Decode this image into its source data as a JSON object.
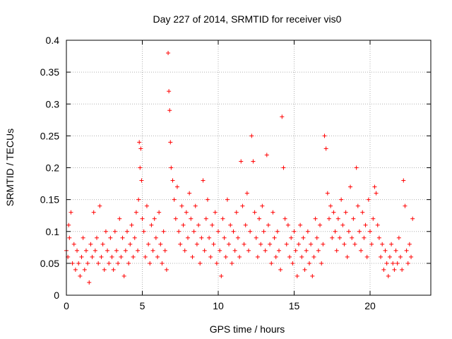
{
  "chart_data": {
    "type": "scatter",
    "title": "Day 227 of 2014, SRMTID for receiver vis0",
    "xlabel": "GPS time / hours",
    "ylabel": "SRMTID / TECUs",
    "xlim": [
      0,
      24
    ],
    "ylim": [
      0,
      0.4
    ],
    "x_ticks": [
      0,
      5,
      10,
      15,
      20
    ],
    "y_ticks": [
      0,
      0.05,
      0.1,
      0.15,
      0.2,
      0.25,
      0.3,
      0.35,
      0.4
    ],
    "x_tick_labels": [
      "0",
      "5",
      "10",
      "15",
      "20"
    ],
    "y_tick_labels": [
      "0",
      "0.05",
      "0.1",
      "0.15",
      "0.2",
      "0.25",
      "0.3",
      "0.35",
      "0.4"
    ],
    "grid": true,
    "marker": "+",
    "color": "#ff0000",
    "series": [
      {
        "name": "vis0",
        "x": [
          0.0,
          0.1,
          0.15,
          0.2,
          0.3,
          0.4,
          0.5,
          0.6,
          0.7,
          0.8,
          0.9,
          1.0,
          1.1,
          1.2,
          1.3,
          1.4,
          1.5,
          1.6,
          1.7,
          1.8,
          1.9,
          2.0,
          2.1,
          2.2,
          2.3,
          2.4,
          2.5,
          2.6,
          2.7,
          2.8,
          2.9,
          3.0,
          3.1,
          3.2,
          3.3,
          3.4,
          3.5,
          3.6,
          3.7,
          3.8,
          3.9,
          4.0,
          4.1,
          4.2,
          4.3,
          4.4,
          4.5,
          4.6,
          4.7,
          4.75,
          4.8,
          4.85,
          4.9,
          4.95,
          5.0,
          5.1,
          5.2,
          5.3,
          5.4,
          5.5,
          5.6,
          5.7,
          5.8,
          5.9,
          6.0,
          6.1,
          6.2,
          6.3,
          6.4,
          6.5,
          6.6,
          6.7,
          6.75,
          6.8,
          6.85,
          6.9,
          7.0,
          7.1,
          7.2,
          7.3,
          7.4,
          7.5,
          7.6,
          7.7,
          7.8,
          7.9,
          8.0,
          8.1,
          8.2,
          8.3,
          8.4,
          8.5,
          8.6,
          8.7,
          8.8,
          8.9,
          9.0,
          9.1,
          9.2,
          9.3,
          9.4,
          9.5,
          9.6,
          9.7,
          9.8,
          9.9,
          10.0,
          10.1,
          10.2,
          10.3,
          10.4,
          10.5,
          10.6,
          10.7,
          10.8,
          10.9,
          11.0,
          11.1,
          11.2,
          11.3,
          11.4,
          11.5,
          11.6,
          11.7,
          11.8,
          11.9,
          12.0,
          12.1,
          12.2,
          12.3,
          12.4,
          12.5,
          12.6,
          12.7,
          12.8,
          12.9,
          13.0,
          13.1,
          13.2,
          13.3,
          13.4,
          13.5,
          13.6,
          13.7,
          13.8,
          13.9,
          14.0,
          14.1,
          14.2,
          14.3,
          14.4,
          14.5,
          14.6,
          14.7,
          14.8,
          14.9,
          15.0,
          15.1,
          15.2,
          15.3,
          15.4,
          15.5,
          15.6,
          15.7,
          15.8,
          15.9,
          16.0,
          16.1,
          16.2,
          16.3,
          16.4,
          16.5,
          16.6,
          16.7,
          16.8,
          16.9,
          17.0,
          17.1,
          17.2,
          17.3,
          17.4,
          17.5,
          17.6,
          17.7,
          17.8,
          17.9,
          18.0,
          18.1,
          18.2,
          18.3,
          18.4,
          18.5,
          18.6,
          18.7,
          18.8,
          18.9,
          19.0,
          19.1,
          19.2,
          19.3,
          19.4,
          19.5,
          19.6,
          19.7,
          19.8,
          19.9,
          20.0,
          20.1,
          20.2,
          20.3,
          20.4,
          20.5,
          20.6,
          20.7,
          20.8,
          20.9,
          21.0,
          21.1,
          21.2,
          21.3,
          21.4,
          21.5,
          21.6,
          21.7,
          21.8,
          21.9,
          22.0,
          22.1,
          22.2,
          22.3,
          22.4,
          22.5,
          22.6,
          22.7,
          22.8
        ],
        "y": [
          0.07,
          0.06,
          0.11,
          0.09,
          0.13,
          0.05,
          0.08,
          0.04,
          0.07,
          0.05,
          0.03,
          0.06,
          0.09,
          0.04,
          0.07,
          0.05,
          0.02,
          0.08,
          0.06,
          0.13,
          0.07,
          0.09,
          0.05,
          0.14,
          0.06,
          0.08,
          0.04,
          0.1,
          0.07,
          0.05,
          0.09,
          0.06,
          0.04,
          0.1,
          0.07,
          0.05,
          0.12,
          0.06,
          0.09,
          0.03,
          0.07,
          0.1,
          0.05,
          0.08,
          0.11,
          0.06,
          0.09,
          0.13,
          0.07,
          0.15,
          0.24,
          0.2,
          0.23,
          0.18,
          0.12,
          0.1,
          0.06,
          0.14,
          0.08,
          0.05,
          0.11,
          0.07,
          0.12,
          0.09,
          0.06,
          0.13,
          0.08,
          0.05,
          0.1,
          0.07,
          0.04,
          0.38,
          0.32,
          0.29,
          0.24,
          0.2,
          0.18,
          0.15,
          0.12,
          0.17,
          0.1,
          0.08,
          0.14,
          0.11,
          0.07,
          0.13,
          0.09,
          0.16,
          0.12,
          0.06,
          0.1,
          0.14,
          0.08,
          0.11,
          0.05,
          0.09,
          0.18,
          0.07,
          0.12,
          0.15,
          0.09,
          0.06,
          0.11,
          0.08,
          0.13,
          0.05,
          0.1,
          0.07,
          0.03,
          0.12,
          0.09,
          0.06,
          0.15,
          0.08,
          0.11,
          0.05,
          0.1,
          0.07,
          0.13,
          0.09,
          0.06,
          0.21,
          0.14,
          0.08,
          0.11,
          0.16,
          0.07,
          0.1,
          0.25,
          0.21,
          0.13,
          0.09,
          0.06,
          0.12,
          0.08,
          0.14,
          0.1,
          0.07,
          0.22,
          0.11,
          0.08,
          0.05,
          0.13,
          0.09,
          0.06,
          0.1,
          0.07,
          0.04,
          0.28,
          0.2,
          0.12,
          0.08,
          0.11,
          0.06,
          0.09,
          0.05,
          0.1,
          0.07,
          0.03,
          0.08,
          0.11,
          0.06,
          0.09,
          0.04,
          0.07,
          0.1,
          0.05,
          0.08,
          0.03,
          0.06,
          0.12,
          0.09,
          0.07,
          0.11,
          0.05,
          0.08,
          0.25,
          0.23,
          0.16,
          0.12,
          0.14,
          0.09,
          0.13,
          0.1,
          0.07,
          0.12,
          0.09,
          0.15,
          0.11,
          0.08,
          0.13,
          0.06,
          0.1,
          0.17,
          0.09,
          0.12,
          0.08,
          0.2,
          0.14,
          0.1,
          0.07,
          0.13,
          0.09,
          0.11,
          0.06,
          0.15,
          0.1,
          0.08,
          0.12,
          0.17,
          0.16,
          0.11,
          0.09,
          0.06,
          0.08,
          0.04,
          0.07,
          0.05,
          0.03,
          0.06,
          0.08,
          0.05,
          0.04,
          0.07,
          0.05,
          0.09,
          0.06,
          0.04,
          0.18,
          0.14,
          0.07,
          0.05,
          0.08,
          0.06,
          0.12
        ]
      }
    ]
  }
}
